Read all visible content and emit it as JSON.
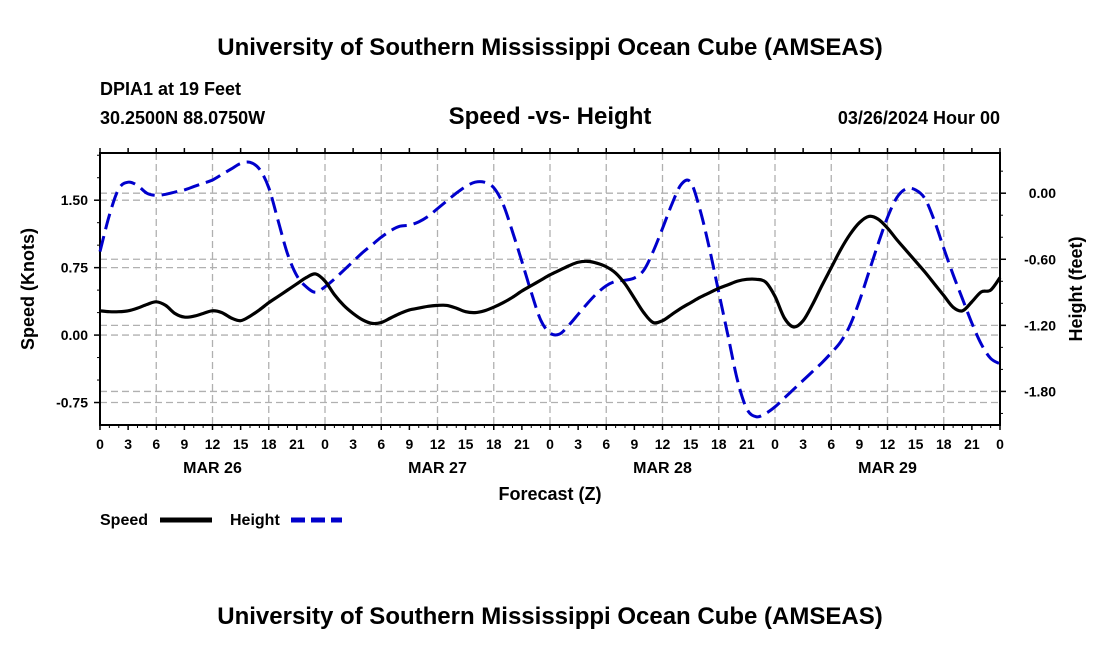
{
  "header": {
    "title": "University of Southern Mississippi Ocean Cube (AMSEAS)",
    "station": "DPIA1 at 19 Feet",
    "coords": "30.2500N  88.0750W",
    "chart_title": "Speed -vs- Height",
    "datetime": "03/26/2024 Hour 00"
  },
  "footer": {
    "title": "University of Southern Mississippi Ocean Cube (AMSEAS)"
  },
  "colors": {
    "speed": "#000000",
    "height": "#0000cc",
    "grid": "#b0b0b0"
  },
  "chart_data": {
    "type": "line",
    "title": "Speed -vs- Height",
    "xlabel": "Forecast (Z)",
    "ylabel_left": "Speed (Knots)",
    "ylabel_right": "Height (feet)",
    "x_range_hours": [
      0,
      96
    ],
    "x_tick_hours": [
      0,
      3,
      6,
      9,
      12,
      15,
      18,
      21,
      24,
      27,
      30,
      33,
      36,
      39,
      42,
      45,
      48,
      51,
      54,
      57,
      60,
      63,
      66,
      69,
      72,
      75,
      78,
      81,
      84,
      87,
      90,
      93,
      96
    ],
    "x_tick_labels": [
      "0",
      "3",
      "6",
      "9",
      "12",
      "15",
      "18",
      "21",
      "0",
      "3",
      "6",
      "9",
      "12",
      "15",
      "18",
      "21",
      "0",
      "3",
      "6",
      "9",
      "12",
      "15",
      "18",
      "21",
      "0",
      "3",
      "6",
      "9",
      "12",
      "15",
      "18",
      "21",
      "0"
    ],
    "day_labels": [
      {
        "hour": 12,
        "label": "MAR 26"
      },
      {
        "hour": 36,
        "label": "MAR 27"
      },
      {
        "hour": 60,
        "label": "MAR 28"
      },
      {
        "hour": 84,
        "label": "MAR 29"
      }
    ],
    "left_axis": {
      "ylim": [
        -1.0,
        2.025
      ],
      "ticks": [
        -0.75,
        0.0,
        0.75,
        1.5
      ],
      "tick_labels": [
        "-0.75",
        "0.00",
        "0.75",
        "1.50"
      ]
    },
    "right_axis": {
      "ylim": [
        -2.105,
        0.365
      ],
      "ticks": [
        -1.8,
        -1.2,
        -0.6,
        0.0
      ],
      "tick_labels": [
        "-1.80",
        "-1.20",
        "-0.60",
        "0.00"
      ]
    },
    "legend": {
      "speed": "Speed",
      "height": "Height"
    },
    "series": [
      {
        "name": "Speed",
        "axis": "left",
        "style": "solid",
        "x": [
          0,
          1,
          2,
          3,
          4,
          5,
          6,
          7,
          8,
          9,
          10,
          11,
          12,
          13,
          14,
          15,
          16,
          17,
          18,
          19,
          20,
          21,
          22,
          23,
          24,
          25,
          26,
          27,
          28,
          29,
          30,
          31,
          32,
          33,
          34,
          35,
          36,
          37,
          38,
          39,
          40,
          41,
          42,
          43,
          44,
          45,
          46,
          47,
          48,
          49,
          50,
          51,
          52,
          53,
          54,
          55,
          56,
          57,
          58,
          59,
          60,
          61,
          62,
          63,
          64,
          65,
          66,
          67,
          68,
          69,
          70,
          71,
          72,
          73,
          74,
          75,
          76,
          77,
          78,
          79,
          80,
          81,
          82,
          83,
          84,
          85,
          86,
          87,
          88,
          89,
          90,
          91,
          92,
          93,
          94,
          95,
          96
        ],
        "values": [
          0.27,
          0.26,
          0.26,
          0.27,
          0.3,
          0.34,
          0.37,
          0.33,
          0.24,
          0.2,
          0.21,
          0.24,
          0.27,
          0.25,
          0.19,
          0.16,
          0.21,
          0.28,
          0.36,
          0.43,
          0.5,
          0.57,
          0.64,
          0.68,
          0.6,
          0.45,
          0.33,
          0.24,
          0.17,
          0.13,
          0.14,
          0.19,
          0.24,
          0.28,
          0.3,
          0.32,
          0.33,
          0.33,
          0.3,
          0.26,
          0.25,
          0.27,
          0.31,
          0.36,
          0.42,
          0.49,
          0.55,
          0.61,
          0.67,
          0.72,
          0.77,
          0.81,
          0.82,
          0.8,
          0.76,
          0.69,
          0.57,
          0.41,
          0.25,
          0.14,
          0.16,
          0.23,
          0.3,
          0.36,
          0.42,
          0.47,
          0.52,
          0.56,
          0.6,
          0.62,
          0.62,
          0.59,
          0.43,
          0.19,
          0.09,
          0.16,
          0.34,
          0.55,
          0.75,
          0.95,
          1.12,
          1.25,
          1.32,
          1.29,
          1.19,
          1.06,
          0.94,
          0.82,
          0.7,
          0.57,
          0.44,
          0.31,
          0.27,
          0.37,
          0.48,
          0.5,
          0.64
        ]
      },
      {
        "name": "Height",
        "axis": "right",
        "style": "dashed",
        "x": [
          0,
          1,
          2,
          3,
          4,
          5,
          6,
          7,
          8,
          9,
          10,
          11,
          12,
          13,
          14,
          15,
          16,
          17,
          18,
          19,
          20,
          21,
          22,
          23,
          24,
          25,
          26,
          27,
          28,
          29,
          30,
          31,
          32,
          33,
          34,
          35,
          36,
          37,
          38,
          39,
          40,
          41,
          42,
          43,
          44,
          45,
          46,
          47,
          48,
          49,
          50,
          51,
          52,
          53,
          54,
          55,
          56,
          57,
          58,
          59,
          60,
          61,
          62,
          63,
          64,
          65,
          66,
          67,
          68,
          69,
          70,
          71,
          72,
          73,
          74,
          75,
          76,
          77,
          78,
          79,
          80,
          81,
          82,
          83,
          84,
          85,
          86,
          87,
          88,
          89,
          90,
          91,
          92,
          93,
          94,
          95,
          96
        ],
        "values": [
          -0.53,
          -0.2,
          0.04,
          0.1,
          0.07,
          0.0,
          -0.02,
          -0.01,
          0.01,
          0.03,
          0.06,
          0.09,
          0.12,
          0.17,
          0.22,
          0.27,
          0.28,
          0.22,
          0.05,
          -0.25,
          -0.55,
          -0.75,
          -0.85,
          -0.9,
          -0.85,
          -0.78,
          -0.7,
          -0.62,
          -0.54,
          -0.47,
          -0.4,
          -0.34,
          -0.3,
          -0.29,
          -0.26,
          -0.21,
          -0.14,
          -0.07,
          0.0,
          0.06,
          0.1,
          0.1,
          0.05,
          -0.1,
          -0.35,
          -0.62,
          -0.9,
          -1.15,
          -1.27,
          -1.28,
          -1.2,
          -1.1,
          -1.0,
          -0.91,
          -0.84,
          -0.8,
          -0.79,
          -0.77,
          -0.7,
          -0.53,
          -0.32,
          -0.1,
          0.08,
          0.1,
          -0.15,
          -0.5,
          -0.9,
          -1.3,
          -1.7,
          -1.96,
          -2.03,
          -2.0,
          -1.94,
          -1.86,
          -1.78,
          -1.7,
          -1.62,
          -1.54,
          -1.45,
          -1.35,
          -1.2,
          -0.98,
          -0.72,
          -0.46,
          -0.22,
          -0.04,
          0.04,
          0.03,
          -0.05,
          -0.25,
          -0.5,
          -0.74,
          -0.96,
          -1.18,
          -1.37,
          -1.5,
          -1.55
        ]
      }
    ]
  }
}
